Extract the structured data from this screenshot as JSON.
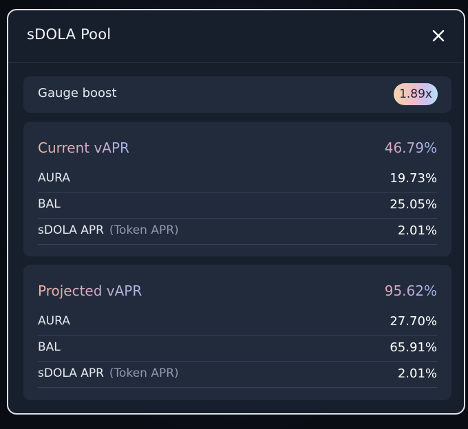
{
  "modal": {
    "title": "sDOLA Pool"
  },
  "gauge": {
    "label": "Gauge boost",
    "boost": "1.89x"
  },
  "current": {
    "title": "Current vAPR",
    "total": "46.79%",
    "rows": [
      {
        "label": "AURA",
        "sublabel": "",
        "value": "19.73%"
      },
      {
        "label": "BAL",
        "sublabel": "",
        "value": "25.05%"
      },
      {
        "label": "sDOLA APR",
        "sublabel": "(Token APR)",
        "value": "2.01%"
      }
    ]
  },
  "projected": {
    "title": "Projected vAPR",
    "total": "95.62%",
    "rows": [
      {
        "label": "AURA",
        "sublabel": "",
        "value": "27.70%"
      },
      {
        "label": "BAL",
        "sublabel": "",
        "value": "65.91%"
      },
      {
        "label": "sDOLA APR",
        "sublabel": "(Token APR)",
        "value": "2.01%"
      }
    ]
  },
  "icons": {
    "close": "close-icon"
  },
  "colors": {
    "modal_bg": "#171e2c",
    "card_bg": "#222b3c",
    "badge_gradient": [
      "#f5d6a8",
      "#f3bcc9",
      "#c9c2f2",
      "#b7e4f4"
    ],
    "apr_title_gradient": [
      "#f0b4a2",
      "#d8a8c2",
      "#a4b6e8"
    ]
  }
}
